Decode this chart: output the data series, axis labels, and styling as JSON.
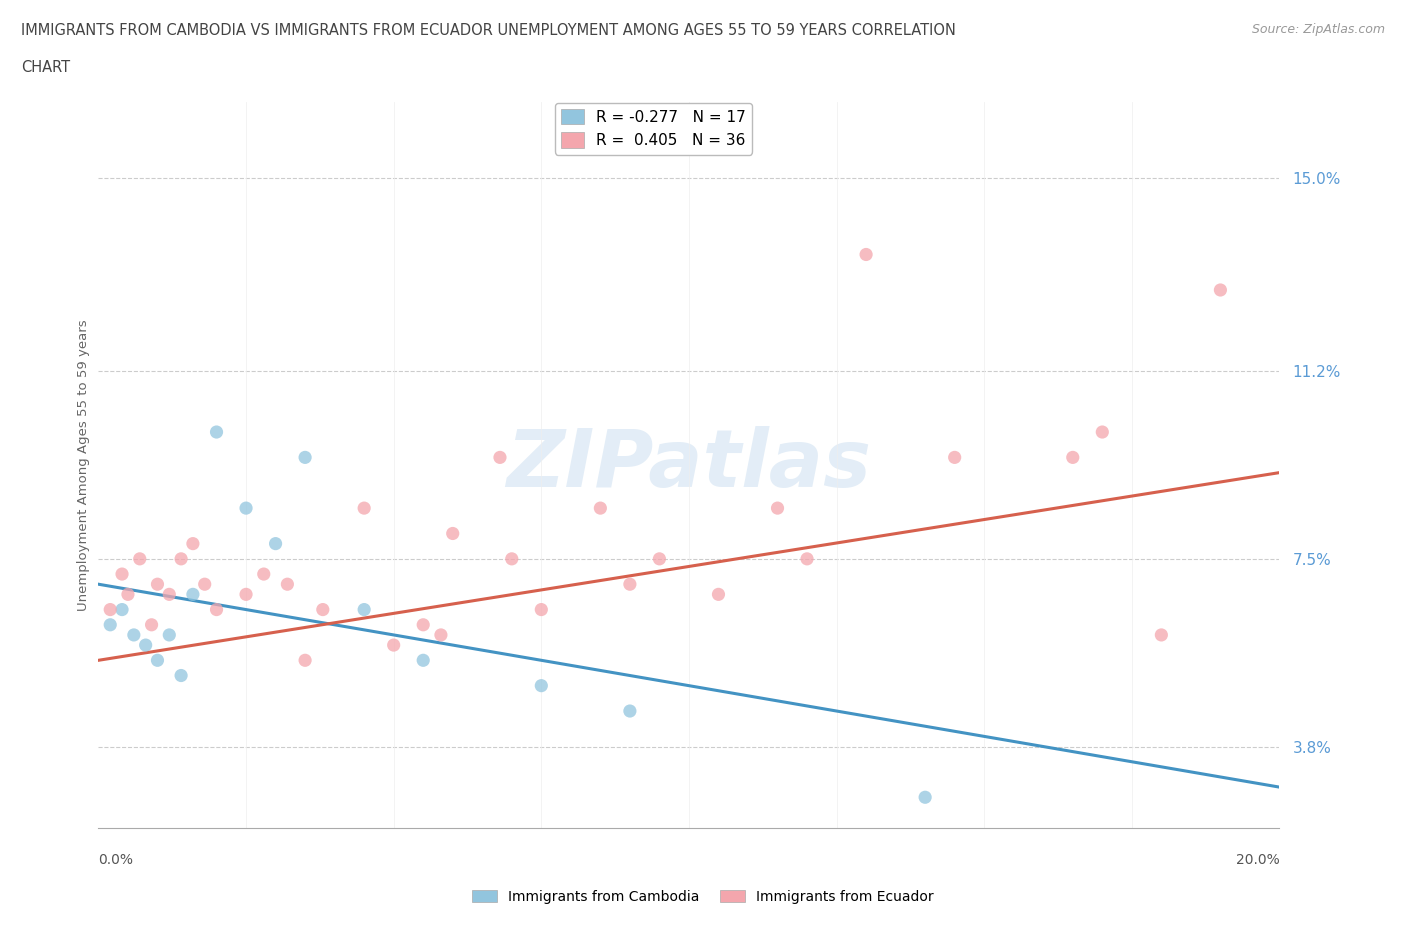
{
  "title_line1": "IMMIGRANTS FROM CAMBODIA VS IMMIGRANTS FROM ECUADOR UNEMPLOYMENT AMONG AGES 55 TO 59 YEARS CORRELATION",
  "title_line2": "CHART",
  "source": "Source: ZipAtlas.com",
  "ylabel": "Unemployment Among Ages 55 to 59 years",
  "ytick_values": [
    3.8,
    7.5,
    11.2,
    15.0
  ],
  "xlim": [
    0.0,
    20.0
  ],
  "ylim": [
    2.2,
    16.5
  ],
  "legend_r_cambodia": "R = -0.277",
  "legend_n_cambodia": "N = 17",
  "legend_r_ecuador": "R =  0.405",
  "legend_n_ecuador": "N = 36",
  "color_cambodia": "#92c5de",
  "color_ecuador": "#f4a6ad",
  "color_trendline_cambodia": "#4393c3",
  "color_trendline_ecuador": "#d6604d",
  "watermark_text": "ZIPatlas",
  "trendline_cambodia_x0": 0.0,
  "trendline_cambodia_y0": 7.0,
  "trendline_cambodia_x1": 20.0,
  "trendline_cambodia_y1": 3.0,
  "trendline_ecuador_x0": 0.0,
  "trendline_ecuador_y0": 5.5,
  "trendline_ecuador_x1": 20.0,
  "trendline_ecuador_y1": 9.2,
  "cambodia_x": [
    0.2,
    0.4,
    0.6,
    0.8,
    1.0,
    1.2,
    1.4,
    1.6,
    2.0,
    2.5,
    3.0,
    3.5,
    4.5,
    5.5,
    7.5,
    9.0,
    14.0
  ],
  "cambodia_y": [
    6.2,
    6.5,
    6.0,
    5.8,
    5.5,
    6.0,
    5.2,
    6.8,
    10.0,
    8.5,
    7.8,
    9.5,
    6.5,
    5.5,
    5.0,
    4.5,
    2.8
  ],
  "ecuador_x": [
    0.2,
    0.4,
    0.5,
    0.7,
    0.9,
    1.0,
    1.2,
    1.4,
    1.6,
    1.8,
    2.0,
    2.5,
    2.8,
    3.2,
    3.8,
    4.5,
    5.0,
    5.5,
    6.0,
    7.0,
    7.5,
    8.5,
    9.5,
    10.5,
    11.5,
    13.0,
    14.5,
    16.5,
    17.0,
    18.0,
    3.5,
    5.8,
    6.8,
    9.0,
    12.0,
    19.0
  ],
  "ecuador_y": [
    6.5,
    7.2,
    6.8,
    7.5,
    6.2,
    7.0,
    6.8,
    7.5,
    7.8,
    7.0,
    6.5,
    6.8,
    7.2,
    7.0,
    6.5,
    8.5,
    5.8,
    6.2,
    8.0,
    7.5,
    6.5,
    8.5,
    7.5,
    6.8,
    8.5,
    13.5,
    9.5,
    9.5,
    10.0,
    6.0,
    5.5,
    6.0,
    9.5,
    7.0,
    7.5,
    12.8
  ]
}
